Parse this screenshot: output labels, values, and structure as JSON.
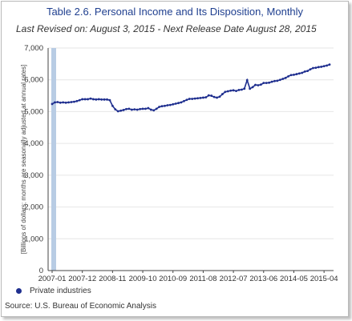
{
  "colors": {
    "series": "#1f2f8f",
    "title": "#1f3f8f",
    "band": "#b8cce4",
    "grid": "#e6e6e6",
    "axis": "#444444"
  },
  "header": {
    "title": "Table 2.6. Personal Income and Its Disposition, Monthly",
    "subtitle": "Last Revised on: August 3, 2015 - Next Release Date August 28, 2015"
  },
  "footer": {
    "source": "Source: U.S. Bureau of Economic Analysis"
  },
  "chart_data": {
    "type": "line",
    "title": "Table 2.6. Personal Income and Its Disposition, Monthly",
    "xlabel": "",
    "ylabel": "[Billions of dollars; months are seasonally adjusted at annual rates]",
    "ylim": [
      0,
      7000
    ],
    "yticks": [
      0,
      1000,
      2000,
      3000,
      4000,
      5000,
      6000,
      7000
    ],
    "ytick_labels": [
      "0",
      "1,000",
      "2,000",
      "3,000",
      "4,000",
      "5,000",
      "6,000",
      "7,000"
    ],
    "xticks": [
      "2007-01",
      "2007-12",
      "2008-11",
      "2009-10",
      "2010-09",
      "2011-08",
      "2012-07",
      "2013-06",
      "2014-05",
      "2015-04"
    ],
    "grid": true,
    "legend_position": "bottom-left",
    "highlight_band": "2007-01",
    "series": [
      {
        "name": "Private industries",
        "x": [
          "2007-01",
          "2007-02",
          "2007-03",
          "2007-04",
          "2007-05",
          "2007-06",
          "2007-07",
          "2007-08",
          "2007-09",
          "2007-10",
          "2007-11",
          "2007-12",
          "2008-01",
          "2008-02",
          "2008-03",
          "2008-04",
          "2008-05",
          "2008-06",
          "2008-07",
          "2008-08",
          "2008-09",
          "2008-10",
          "2008-11",
          "2008-12",
          "2009-01",
          "2009-02",
          "2009-03",
          "2009-04",
          "2009-05",
          "2009-06",
          "2009-07",
          "2009-08",
          "2009-09",
          "2009-10",
          "2009-11",
          "2009-12",
          "2010-01",
          "2010-02",
          "2010-03",
          "2010-04",
          "2010-05",
          "2010-06",
          "2010-07",
          "2010-08",
          "2010-09",
          "2010-10",
          "2010-11",
          "2010-12",
          "2011-01",
          "2011-02",
          "2011-03",
          "2011-04",
          "2011-05",
          "2011-06",
          "2011-07",
          "2011-08",
          "2011-09",
          "2011-10",
          "2011-11",
          "2011-12",
          "2012-01",
          "2012-02",
          "2012-03",
          "2012-04",
          "2012-05",
          "2012-06",
          "2012-07",
          "2012-08",
          "2012-09",
          "2012-10",
          "2012-11",
          "2012-12",
          "2013-01",
          "2013-02",
          "2013-03",
          "2013-04",
          "2013-05",
          "2013-06",
          "2013-07",
          "2013-08",
          "2013-09",
          "2013-10",
          "2013-11",
          "2013-12",
          "2014-01",
          "2014-02",
          "2014-03",
          "2014-04",
          "2014-05",
          "2014-06",
          "2014-07",
          "2014-08",
          "2014-09",
          "2014-10",
          "2014-11",
          "2014-12",
          "2015-01",
          "2015-02",
          "2015-03",
          "2015-04",
          "2015-05",
          "2015-06"
        ],
        "values": [
          5240,
          5290,
          5300,
          5280,
          5290,
          5280,
          5290,
          5300,
          5310,
          5330,
          5360,
          5390,
          5390,
          5390,
          5410,
          5390,
          5380,
          5390,
          5380,
          5380,
          5380,
          5360,
          5180,
          5070,
          5010,
          5030,
          5050,
          5080,
          5090,
          5060,
          5070,
          5060,
          5080,
          5090,
          5090,
          5110,
          5060,
          5040,
          5090,
          5150,
          5170,
          5180,
          5200,
          5210,
          5230,
          5250,
          5270,
          5290,
          5330,
          5370,
          5400,
          5400,
          5410,
          5420,
          5430,
          5440,
          5450,
          5510,
          5500,
          5460,
          5440,
          5470,
          5550,
          5620,
          5640,
          5660,
          5670,
          5650,
          5680,
          5690,
          5720,
          5990,
          5720,
          5770,
          5840,
          5830,
          5850,
          5900,
          5900,
          5910,
          5940,
          5960,
          5970,
          6000,
          6030,
          6060,
          6110,
          6150,
          6160,
          6180,
          6200,
          6220,
          6260,
          6280,
          6330,
          6370,
          6380,
          6400,
          6410,
          6430,
          6450,
          6480
        ]
      }
    ]
  }
}
